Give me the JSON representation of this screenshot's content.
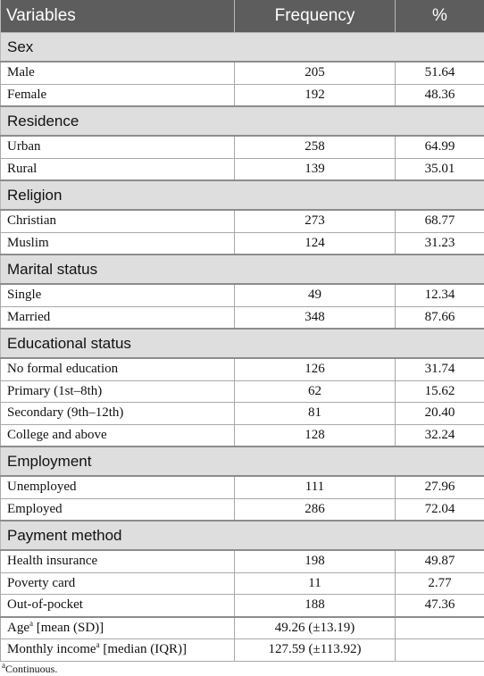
{
  "header": {
    "variables": "Variables",
    "frequency": "Frequency",
    "percent": "%"
  },
  "sections": [
    {
      "title": "Sex",
      "rows": [
        {
          "label": "Male",
          "frequency": "205",
          "percent": "51.64"
        },
        {
          "label": "Female",
          "frequency": "192",
          "percent": "48.36"
        }
      ]
    },
    {
      "title": "Residence",
      "rows": [
        {
          "label": "Urban",
          "frequency": "258",
          "percent": "64.99"
        },
        {
          "label": "Rural",
          "frequency": "139",
          "percent": "35.01"
        }
      ]
    },
    {
      "title": "Religion",
      "rows": [
        {
          "label": "Christian",
          "frequency": "273",
          "percent": "68.77"
        },
        {
          "label": "Muslim",
          "frequency": "124",
          "percent": "31.23"
        }
      ]
    },
    {
      "title": "Marital status",
      "rows": [
        {
          "label": "Single",
          "frequency": "49",
          "percent": "12.34"
        },
        {
          "label": "Married",
          "frequency": "348",
          "percent": "87.66"
        }
      ]
    },
    {
      "title": "Educational status",
      "rows": [
        {
          "label": "No formal education",
          "frequency": "126",
          "percent": "31.74"
        },
        {
          "label": "Primary (1st–8th)",
          "frequency": "62",
          "percent": "15.62"
        },
        {
          "label": "Secondary (9th–12th)",
          "frequency": "81",
          "percent": "20.40"
        },
        {
          "label": "College and above",
          "frequency": "128",
          "percent": "32.24"
        }
      ]
    },
    {
      "title": "Employment",
      "rows": [
        {
          "label": "Unemployed",
          "frequency": "111",
          "percent": "27.96"
        },
        {
          "label": "Employed",
          "frequency": "286",
          "percent": "72.04"
        }
      ]
    },
    {
      "title": "Payment method",
      "rows": [
        {
          "label": "Health insurance",
          "frequency": "198",
          "percent": "49.87"
        },
        {
          "label": "Poverty card",
          "frequency": "11",
          "percent": "2.77"
        },
        {
          "label": "Out-of-pocket",
          "frequency": "188",
          "percent": "47.36"
        }
      ]
    }
  ],
  "continuous_rows": [
    {
      "label_main": "Age",
      "label_sup": "a",
      "label_rest": " [mean (SD)]",
      "value": "49.26 (±13.19)",
      "percent": ""
    },
    {
      "label_main": "Monthly income",
      "label_sup": "a",
      "label_rest": " [median (IQR)]",
      "value": "127.59 (±113.92)",
      "percent": ""
    }
  ],
  "footnote": {
    "marker": "a",
    "text": "Continuous."
  },
  "colors": {
    "header_bg": "#5d5d5d",
    "section_bg": "#dedede",
    "border": "#a9a9a9"
  }
}
